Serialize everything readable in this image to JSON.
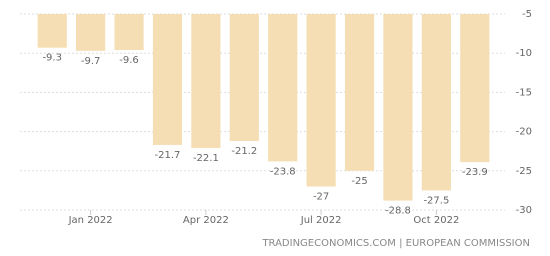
{
  "chart_data": {
    "type": "bar",
    "categories": [
      null,
      "Jan 2022",
      null,
      null,
      "Apr 2022",
      null,
      null,
      "Jul 2022",
      null,
      null,
      "Oct 2022",
      null
    ],
    "values": [
      -9.3,
      -9.7,
      -9.6,
      -21.7,
      -22.1,
      -21.2,
      -23.8,
      -27,
      -25,
      -28.8,
      -27.5,
      -23.9
    ],
    "color": "#f5deb3",
    "ylim": [
      -30,
      -5
    ],
    "yticks": [
      -5,
      -10,
      -15,
      -20,
      -25,
      -30
    ],
    "grid": true,
    "source": "TRADINGECONOMICS.COM | EUROPEAN COMMISSION"
  }
}
